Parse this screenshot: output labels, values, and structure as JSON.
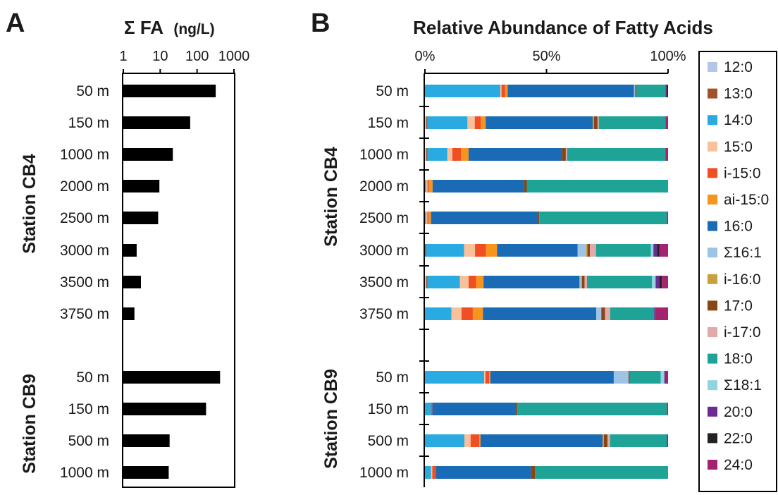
{
  "chart_data": [
    {
      "panel": "A",
      "type": "bar",
      "orientation": "horizontal",
      "title": "Σ FA",
      "unit": "(ng/L)",
      "xscale": "log",
      "xlim": [
        1,
        1000
      ],
      "xticks": [
        "1",
        "10",
        "100",
        "1000"
      ],
      "groups": [
        {
          "label": "Station CB4",
          "categories": [
            "50 m",
            "150 m",
            "1000 m",
            "2000 m",
            "2500 m",
            "3000 m",
            "3500 m",
            "3750 m"
          ],
          "values": [
            320,
            65,
            22,
            9.5,
            8.8,
            2.3,
            3.0,
            2.0
          ]
        },
        {
          "label": "Station CB9",
          "categories": [
            "50 m",
            "150 m",
            "500 m",
            "1000 m"
          ],
          "values": [
            420,
            175,
            18,
            17
          ]
        }
      ],
      "bar_color": "#000000",
      "grid": false
    },
    {
      "panel": "B",
      "type": "bar",
      "stacked": true,
      "orientation": "horizontal",
      "title": "Relative Abundance of Fatty Acids",
      "xlim": [
        0,
        100
      ],
      "xticks": [
        "0%",
        "50%",
        "100%"
      ],
      "groups": [
        {
          "label": "Station CB4",
          "categories": [
            "50 m",
            "150 m",
            "1000 m",
            "2000 m",
            "2500 m",
            "3000 m",
            "3500 m",
            "3750 m"
          ]
        },
        {
          "label": "Station CB9",
          "categories": [
            "50 m",
            "150 m",
            "500 m",
            "1000 m"
          ]
        }
      ],
      "legend_position": "right",
      "series": [
        {
          "name": "12:0",
          "color": "#b4c7e7",
          "values": [
            0,
            0.5,
            0.5,
            0,
            0,
            0,
            0.5,
            0,
            0,
            0,
            0,
            0
          ]
        },
        {
          "name": "13:0",
          "color": "#a0522d",
          "values": [
            0,
            0.5,
            0.5,
            0,
            0,
            0.5,
            0.5,
            0,
            0,
            0,
            0,
            0
          ]
        },
        {
          "name": "14:0",
          "color": "#29abe2",
          "values": [
            31,
            16.5,
            8,
            0.5,
            0.5,
            15.5,
            13,
            10.5,
            24,
            2.5,
            16,
            2.5
          ]
        },
        {
          "name": "15:0",
          "color": "#f8c19a",
          "values": [
            0.5,
            3,
            2,
            0.5,
            0.5,
            4.5,
            3.5,
            4,
            0.5,
            0,
            2.5,
            0.5
          ]
        },
        {
          "name": "i-15:0",
          "color": "#f04e23",
          "values": [
            1.5,
            2.5,
            3.5,
            0.5,
            0.5,
            4.5,
            3,
            4.5,
            1.5,
            0.5,
            3.5,
            1.5
          ]
        },
        {
          "name": "ai-15:0",
          "color": "#f7941d",
          "values": [
            1,
            2,
            3,
            1.5,
            1,
            4.5,
            3,
            4,
            0.5,
            0,
            0.5,
            0
          ]
        },
        {
          "name": "16:0",
          "color": "#1a6bb6",
          "values": [
            52,
            44,
            37.5,
            36,
            44,
            33,
            38.5,
            45,
            50,
            34.5,
            49.5,
            39
          ]
        },
        {
          "name": "Σ16:1",
          "color": "#9dc3e6",
          "values": [
            0.5,
            0,
            0,
            0,
            0,
            3.5,
            0.5,
            2,
            6,
            0,
            0,
            0
          ]
        },
        {
          "name": "i-16:0",
          "color": "#c8a040",
          "values": [
            0,
            0.5,
            0,
            0,
            0,
            0.5,
            0.5,
            0,
            0,
            0,
            0.5,
            0
          ]
        },
        {
          "name": "17:0",
          "color": "#8b4513",
          "values": [
            0.5,
            1.5,
            1.5,
            1,
            0.5,
            1,
            1,
            1.5,
            0.5,
            0.5,
            1.5,
            1.5
          ]
        },
        {
          "name": "i-17:0",
          "color": "#e3a9a9",
          "values": [
            0,
            0.5,
            0.5,
            0,
            0,
            2.5,
            1,
            2,
            0,
            0,
            1,
            0
          ]
        },
        {
          "name": "18:0",
          "color": "#1fa396",
          "values": [
            12,
            27.5,
            39.5,
            55.5,
            52.5,
            22.5,
            26,
            17.5,
            12.5,
            61.5,
            23,
            54.5
          ]
        },
        {
          "name": "Σ18:1",
          "color": "#92d3e2",
          "values": [
            0,
            0,
            0,
            0,
            0,
            1,
            1.5,
            0,
            1.5,
            0,
            0,
            0
          ]
        },
        {
          "name": "20:0",
          "color": "#6a2c91",
          "values": [
            0.5,
            0,
            0,
            0,
            0,
            1.5,
            1.5,
            0.5,
            0.5,
            0,
            0.5,
            0
          ]
        },
        {
          "name": "22:0",
          "color": "#222222",
          "values": [
            0.5,
            0,
            0,
            0,
            0,
            1,
            1,
            0,
            0,
            0,
            0,
            0
          ]
        },
        {
          "name": "24:0",
          "color": "#a4236e",
          "values": [
            0,
            1,
            1,
            0,
            0.5,
            3.5,
            2.5,
            5,
            1,
            0.5,
            0,
            0
          ]
        }
      ]
    }
  ]
}
